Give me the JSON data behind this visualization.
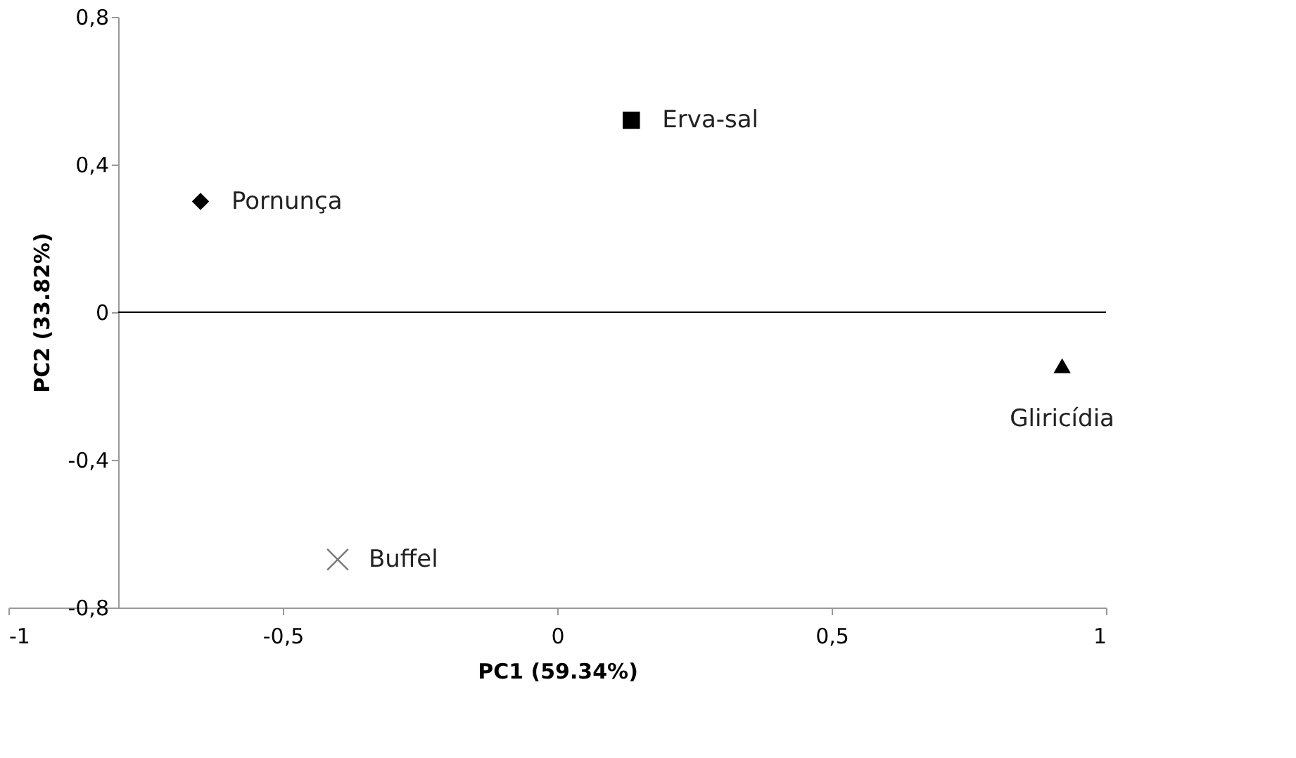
{
  "chart_data": {
    "type": "scatter",
    "xlabel": "PC1 (59.34%)",
    "ylabel": "PC2 (33.82%)",
    "series": [
      {
        "color": "#000000",
        "marker": "diamond",
        "x": [
          -0.65
        ],
        "values": [
          0.3
        ]
      },
      {
        "color": "#000000",
        "marker": "square",
        "x": [
          0.135
        ],
        "values": [
          0.52
        ]
      },
      {
        "color": "#000000",
        "marker": "triangle",
        "x": [
          0.92
        ],
        "values": [
          -0.145
        ]
      },
      {
        "color": "#404040",
        "marker": "cross",
        "x": [
          -0.4
        ],
        "values": [
          -0.67
        ]
      }
    ],
    "annotations": [
      {
        "text": "Pornunça",
        "x": -0.65,
        "y": 0.3
      },
      {
        "text": "Erva-sal",
        "x": 0.135,
        "y": 0.52
      },
      {
        "text": "Gliricídia",
        "x": 0.92,
        "y": -0.145
      },
      {
        "text": "Buffel",
        "x": -0.4,
        "y": -0.67
      }
    ],
    "xlim": [
      -1,
      1
    ],
    "xticks": [
      -1,
      {
        "value": -0.5,
        "label": "-0,5"
      },
      0,
      {
        "value": 0.5,
        "label": "0,5"
      },
      1
    ],
    "ylim": [
      -0.8,
      0.8
    ],
    "yticks": [
      {
        "value": -0.8,
        "label": "-0,8"
      },
      {
        "value": -0.4,
        "label": "-0,4"
      },
      0,
      {
        "value": 0.4,
        "label": "0,4"
      },
      {
        "value": 0.8,
        "label": "0,8"
      }
    ],
    "ref_lines": [
      {
        "axis": "y",
        "value": 0,
        "color": "#000000"
      }
    ],
    "grid": false
  }
}
